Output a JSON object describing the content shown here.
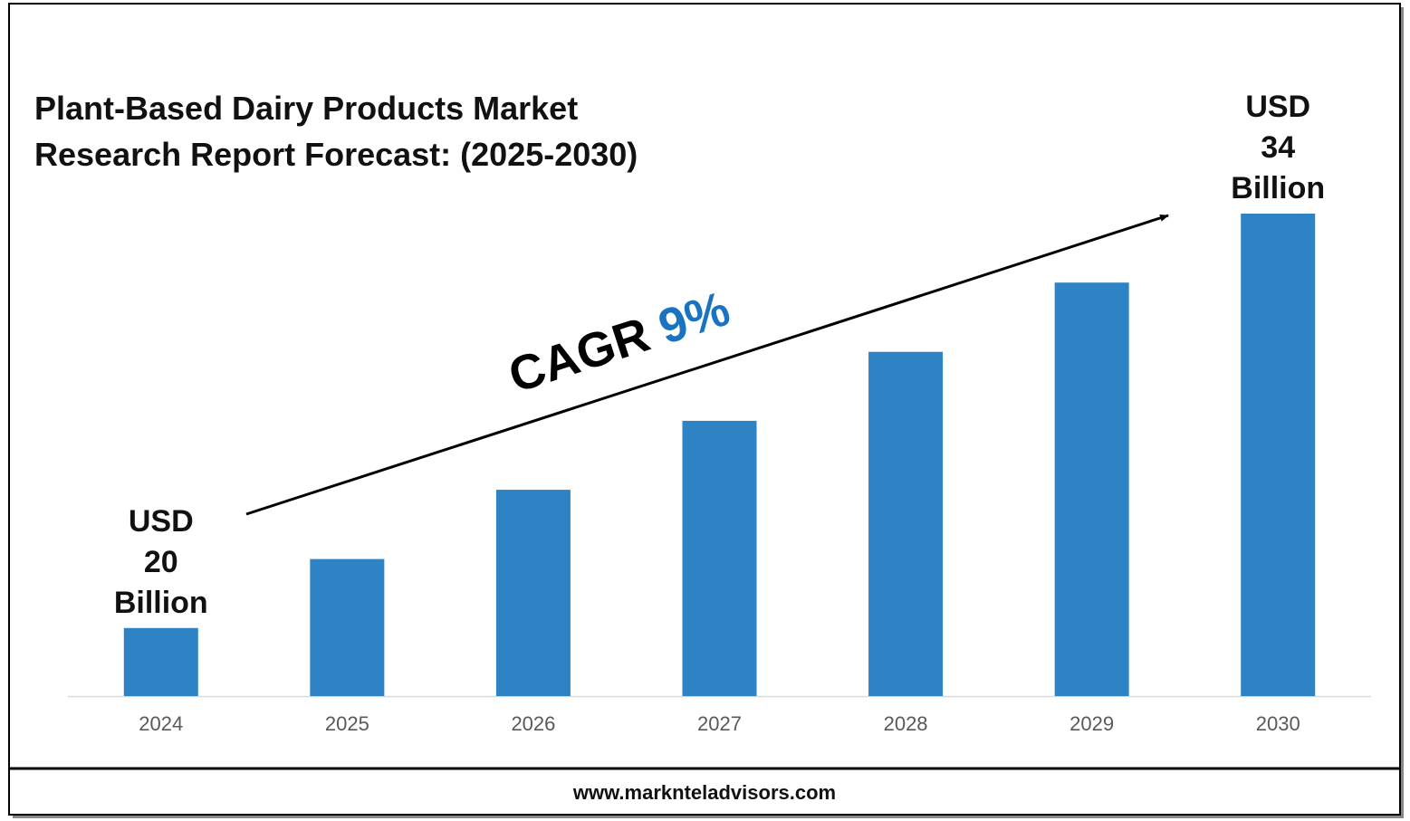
{
  "chart_data": {
    "type": "bar",
    "title": "Plant-Based Dairy Products Market Research Report Forecast: (2025-2030)",
    "categories": [
      "2024",
      "2025",
      "2026",
      "2027",
      "2028",
      "2029",
      "2030"
    ],
    "values": [
      20,
      22.33,
      24.67,
      27,
      29.33,
      31.67,
      34
    ],
    "value_labels": [
      "USD 20 Billion",
      null,
      null,
      null,
      null,
      null,
      "USD 34 Billion"
    ],
    "color": "#2e83c4",
    "ylim": [
      17.7,
      34
    ],
    "annotation": {
      "text": "CAGR",
      "highlight": "9%",
      "highlight_color": "#1a73c0"
    },
    "footer": "www.marknteladvisors.com"
  }
}
